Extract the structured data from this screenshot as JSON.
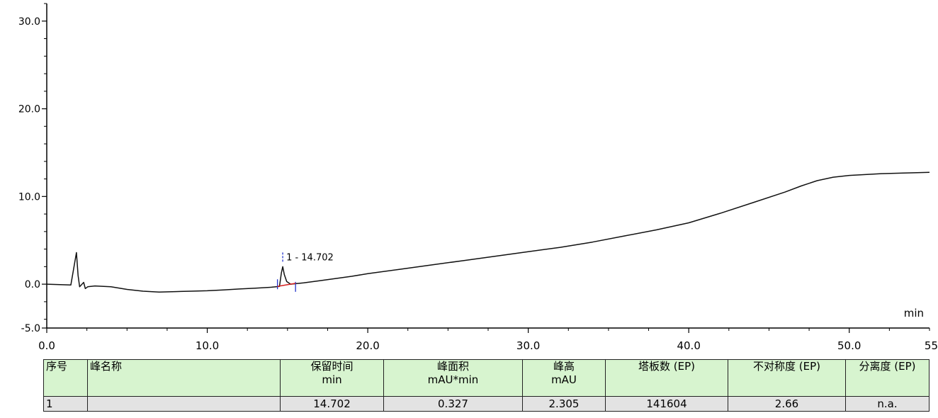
{
  "chart_data": {
    "type": "line",
    "x_axis": {
      "range": [
        0,
        55
      ],
      "tick_labels": [
        "0.0",
        "10.0",
        "20.0",
        "30.0",
        "40.0",
        "50.0",
        "55"
      ],
      "unit_label": "min"
    },
    "y_axis": {
      "range": [
        -5,
        32
      ],
      "tick_labels": [
        "-5.0",
        "0.0",
        "10.0",
        "20.0",
        "30.0"
      ]
    },
    "series": [
      {
        "x": [
          0,
          1.5,
          1.85,
          1.95,
          2.05,
          2.15,
          2.3,
          2.4,
          2.55,
          3,
          4,
          5,
          6,
          7,
          8,
          9,
          10,
          11,
          12,
          13,
          14,
          14.5,
          14.62,
          14.702,
          14.8,
          14.95,
          15.2,
          16,
          17,
          18,
          19,
          20,
          22,
          24,
          26,
          28,
          30,
          32,
          34,
          36,
          38,
          40,
          42,
          44,
          46,
          47,
          48,
          49,
          50,
          52,
          54,
          55
        ],
        "y": [
          0,
          -0.1,
          3.6,
          1.0,
          -0.3,
          -0.1,
          0.2,
          -0.5,
          -0.3,
          -0.2,
          -0.3,
          -0.6,
          -0.8,
          -0.9,
          -0.85,
          -0.8,
          -0.75,
          -0.65,
          -0.55,
          -0.45,
          -0.35,
          -0.25,
          1.3,
          2.0,
          1.1,
          0.3,
          0,
          0.15,
          0.4,
          0.65,
          0.9,
          1.2,
          1.7,
          2.2,
          2.7,
          3.2,
          3.7,
          4.2,
          4.8,
          5.5,
          6.2,
          7.0,
          8.1,
          9.3,
          10.5,
          11.2,
          11.8,
          12.2,
          12.4,
          12.6,
          12.7,
          12.75
        ]
      }
    ],
    "annotations": [
      {
        "x": 14.702,
        "y": 2.0,
        "text": "1 - 14.702"
      }
    ]
  },
  "table": {
    "headers": [
      {
        "line1": "序号",
        "line2": ""
      },
      {
        "line1": "峰名称",
        "line2": ""
      },
      {
        "line1": "保留时间",
        "line2": "min"
      },
      {
        "line1": "峰面积",
        "line2": "mAU*min"
      },
      {
        "line1": "峰高",
        "line2": "mAU"
      },
      {
        "line1": "塔板数 (EP)",
        "line2": ""
      },
      {
        "line1": "不对称度 (EP)",
        "line2": ""
      },
      {
        "line1": "分离度 (EP)",
        "line2": ""
      }
    ],
    "rows": [
      [
        "1",
        "",
        "14.702",
        "0.327",
        "2.305",
        "141604",
        "2.66",
        "n.a."
      ]
    ]
  }
}
